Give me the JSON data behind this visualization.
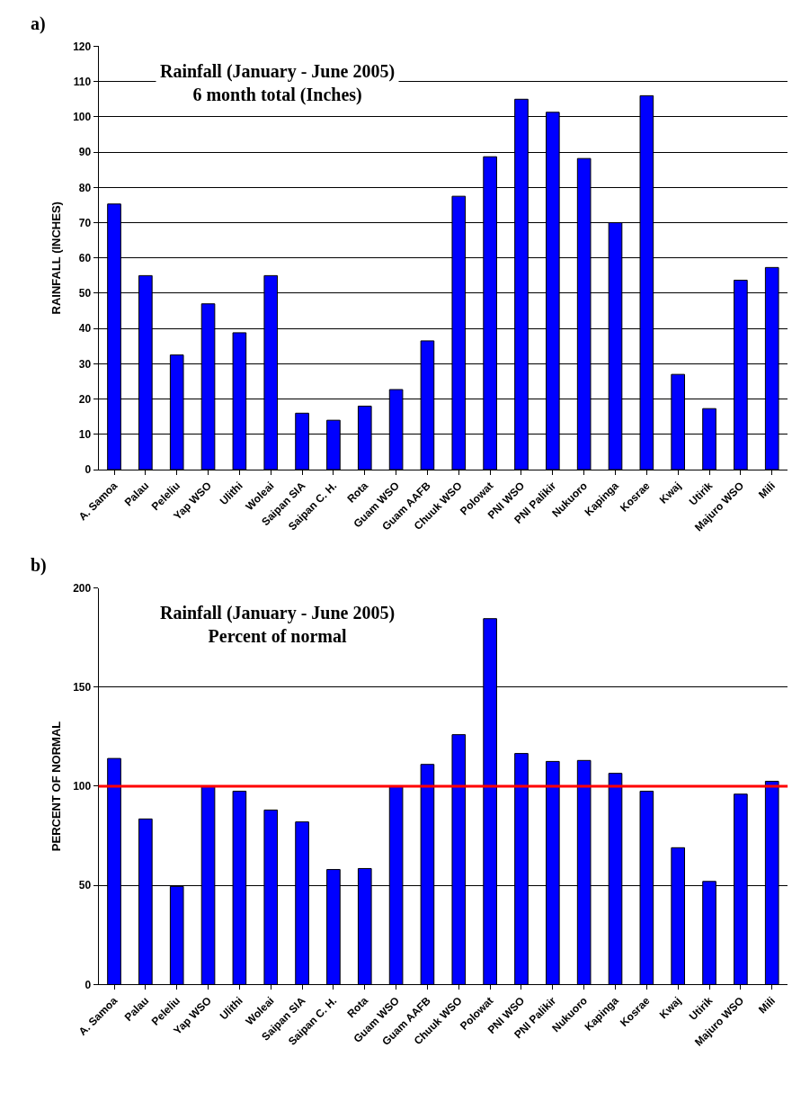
{
  "chart_data": [
    {
      "type": "bar",
      "title": "Rainfall (January - June 2005)",
      "subtitle": "6 month total (Inches)",
      "ylabel": "RAINFALL (INCHES)",
      "annotations": [
        "a)"
      ],
      "categories": [
        "A. Samoa",
        "Palau",
        "Peleliu",
        "Yap WSO",
        "Ulithi",
        "Woleai",
        "Saipan SIA",
        "Saipan C. H.",
        "Rota",
        "Guam WSO",
        "Guam AAFB",
        "Chuuk WSO",
        "Polowat",
        "PNI WSO",
        "PNI Palikir",
        "Nukuoro",
        "Kapinga",
        "Kosrae",
        "Kwaj",
        "Utirik",
        "Majuro WSO",
        "Mili"
      ],
      "values": [
        75.3,
        55,
        32.5,
        47,
        38.8,
        55,
        16,
        14,
        18,
        22.7,
        36.5,
        77.5,
        88.7,
        105,
        101.3,
        88.2,
        70,
        106,
        27,
        17.3,
        53.7,
        57.3
      ],
      "color": "#0000ff",
      "ylim": [
        0,
        120
      ],
      "yticks": [
        0,
        10,
        20,
        30,
        40,
        50,
        60,
        70,
        80,
        90,
        100,
        110,
        120
      ],
      "grid": "y"
    },
    {
      "type": "bar",
      "title": "Rainfall (January - June 2005)",
      "subtitle": "Percent of normal",
      "ylabel": "PERCENT OF NORMAL",
      "annotations": [
        "b)"
      ],
      "categories": [
        "A. Samoa",
        "Palau",
        "Peleliu",
        "Yap WSO",
        "Ulithi",
        "Woleai",
        "Saipan SIA",
        "Saipan C. H.",
        "Rota",
        "Guam WSO",
        "Guam AAFB",
        "Chuuk WSO",
        "Polowat",
        "PNI WSO",
        "PNI Palikir",
        "Nukuoro",
        "Kapinga",
        "Kosrae",
        "Kwaj",
        "Utirik",
        "Majuro WSO",
        "Mili"
      ],
      "values": [
        114,
        83.5,
        49.5,
        100,
        97.5,
        88,
        82,
        58,
        58.5,
        100,
        111,
        126,
        184.5,
        116.5,
        112.5,
        113,
        106.5,
        97.5,
        69,
        52,
        96,
        102.5
      ],
      "color": "#0000ff",
      "ylim": [
        0,
        200
      ],
      "yticks": [
        0,
        50,
        100,
        150,
        200
      ],
      "grid": "y",
      "ref_lines": [
        {
          "axis": "y",
          "value": 100,
          "color": "#ff0000"
        }
      ]
    }
  ]
}
